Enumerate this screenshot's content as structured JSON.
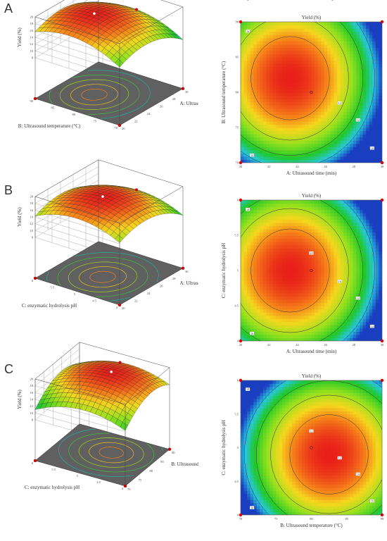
{
  "colors": {
    "high": "#e8281e",
    "mid": "#f0d020",
    "low": "#20c020",
    "lowest": "#1a3ec0",
    "floor": "#606060",
    "design_point": "#e00000"
  },
  "chart_data": [
    {
      "panel": "A",
      "type": "surface3d",
      "xlabel": "A: Ultrasound time (min)",
      "ylabel": "B: Ultrasound temperature (°C)",
      "zlabel": "Yield (%)",
      "x_ticks": [
        "20",
        "22",
        "24",
        "26",
        "28",
        "30"
      ],
      "y_ticks": [
        "70",
        "75",
        "80",
        "85",
        "90"
      ],
      "z_ticks": [
        "8",
        "10",
        "12",
        "14",
        "16",
        "18",
        "20"
      ],
      "xlim": [
        20,
        30
      ],
      "ylim": [
        70,
        90
      ],
      "zlim": [
        8,
        20
      ],
      "center": [
        24,
        82
      ],
      "peak_yield": 19.8
    },
    {
      "panel": "A",
      "type": "contour",
      "title": "Yield (%)",
      "xlabel": "A: Ultrasound time (min)",
      "ylabel": "B: Ultrasound temperature (°C)",
      "x_ticks": [
        "20",
        "22",
        "24",
        "26",
        "28",
        "30"
      ],
      "y_ticks": [
        "70",
        "75",
        "80",
        "85",
        "90"
      ],
      "xlim": [
        20,
        30
      ],
      "ylim": [
        70,
        90
      ],
      "center": [
        23.5,
        82
      ],
      "contour_labels": [
        "16",
        "14",
        "12",
        "10",
        "14"
      ],
      "design_point": [
        25,
        80
      ]
    },
    {
      "panel": "B",
      "type": "surface3d",
      "xlabel": "A: Ultrasound time (min)",
      "ylabel": "C: enzymatic hydrolysis pH",
      "zlabel": "Yield (%)",
      "x_ticks": [
        "20",
        "22",
        "24",
        "26",
        "28",
        "30"
      ],
      "y_ticks": [
        "4",
        "4.5",
        "5",
        "5.5",
        "6"
      ],
      "z_ticks": [
        "8",
        "10",
        "12",
        "14",
        "16",
        "18",
        "20"
      ],
      "xlim": [
        20,
        30
      ],
      "ylim": [
        4,
        6
      ],
      "zlim": [
        8,
        20
      ],
      "center": [
        24,
        5
      ],
      "peak_yield": 19.6
    },
    {
      "panel": "B",
      "type": "contour",
      "title": "Yield (%)",
      "xlabel": "A: Ultrasound time (min)",
      "ylabel": "C: enzymatic hydrolysis pH",
      "x_ticks": [
        "20",
        "22",
        "24",
        "26",
        "28",
        "30"
      ],
      "y_ticks": [
        "4",
        "4.5",
        "5",
        "5.5",
        "6"
      ],
      "xlim": [
        20,
        30
      ],
      "ylim": [
        4,
        6
      ],
      "center": [
        23.5,
        5
      ],
      "contour_labels": [
        "14",
        "16",
        "12",
        "14",
        "16",
        "18"
      ],
      "design_point": [
        25,
        5
      ]
    },
    {
      "panel": "C",
      "type": "surface3d",
      "xlabel": "B: Ultrasound temperature (°C)",
      "ylabel": "C: enzymatic hydrolysis pH",
      "zlabel": "Yield (%)",
      "x_ticks": [
        "70",
        "75",
        "80",
        "85",
        "90"
      ],
      "y_ticks": [
        "4",
        "4.5",
        "5",
        "5.5",
        "6"
      ],
      "z_ticks": [
        "8",
        "10",
        "12",
        "14",
        "16",
        "18",
        "20"
      ],
      "xlim": [
        70,
        90
      ],
      "ylim": [
        4,
        6
      ],
      "zlim": [
        8,
        20
      ],
      "center": [
        82,
        4.9
      ],
      "peak_yield": 19.7
    },
    {
      "panel": "C",
      "type": "contour",
      "title": "Yield (%)",
      "xlabel": "B: Ultrasound temperature (°C)",
      "ylabel": "C: enzymatic hydrolysis pH",
      "x_ticks": [
        "70",
        "75",
        "80",
        "85",
        "90"
      ],
      "y_ticks": [
        "4",
        "4.5",
        "5",
        "5.5",
        "6"
      ],
      "xlim": [
        70,
        90
      ],
      "ylim": [
        4,
        6
      ],
      "center": [
        82.5,
        4.9
      ],
      "contour_labels": [
        "10",
        "12",
        "14",
        "16",
        "18",
        "12"
      ],
      "design_point": [
        80,
        5
      ]
    }
  ],
  "panels": [
    "A",
    "B",
    "C"
  ]
}
